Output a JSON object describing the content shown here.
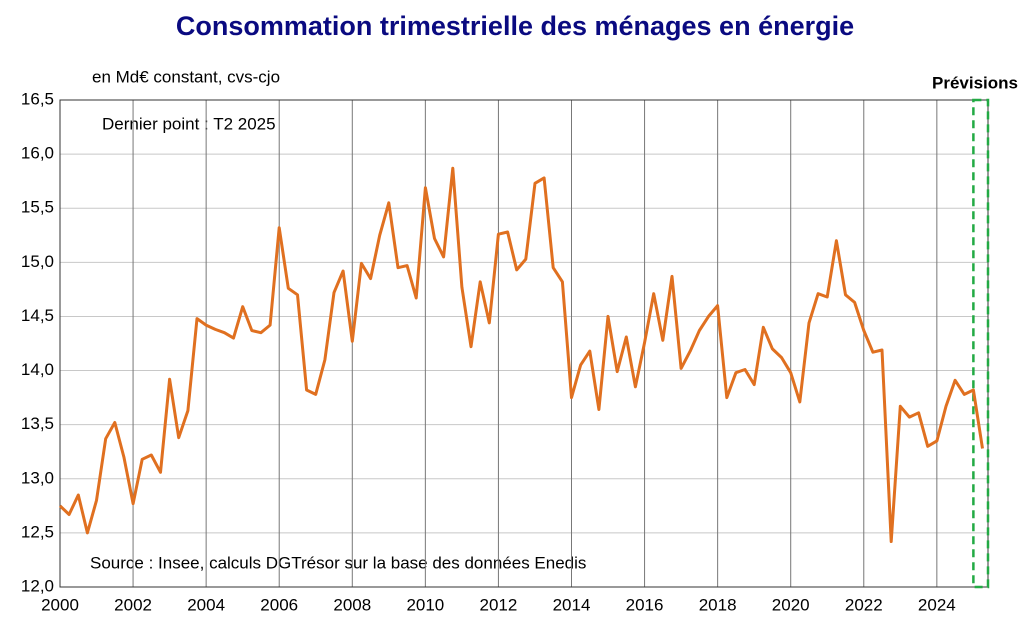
{
  "chart_data": {
    "type": "line",
    "title": "Consommation trimestrielle des ménages en énergie",
    "subtitle": "en Md€ constant, cvs-cjo",
    "annotation": "Dernier point : T2 2025",
    "source": "Source : Insee, calculs DGTrésor sur la base des données Enedis",
    "forecast_label": "Prévisions",
    "forecast_x": [
      2025,
      2025.4
    ],
    "forecast_color": "#22aa44",
    "x": [
      2000,
      2000.25,
      2000.5,
      2000.75,
      2001,
      2001.25,
      2001.5,
      2001.75,
      2002,
      2002.25,
      2002.5,
      2002.75,
      2003,
      2003.25,
      2003.5,
      2003.75,
      2004,
      2004.25,
      2004.5,
      2004.75,
      2005,
      2005.25,
      2005.5,
      2005.75,
      2006,
      2006.25,
      2006.5,
      2006.75,
      2007,
      2007.25,
      2007.5,
      2007.75,
      2008,
      2008.25,
      2008.5,
      2008.75,
      2009,
      2009.25,
      2009.5,
      2009.75,
      2010,
      2010.25,
      2010.5,
      2010.75,
      2011,
      2011.25,
      2011.5,
      2011.75,
      2012,
      2012.25,
      2012.5,
      2012.75,
      2013,
      2013.25,
      2013.5,
      2013.75,
      2014,
      2014.25,
      2014.5,
      2014.75,
      2015,
      2015.25,
      2015.5,
      2015.75,
      2016,
      2016.25,
      2016.5,
      2016.75,
      2017,
      2017.25,
      2017.5,
      2017.75,
      2018,
      2018.25,
      2018.5,
      2018.75,
      2019,
      2019.25,
      2019.5,
      2019.75,
      2020,
      2020.25,
      2020.5,
      2020.75,
      2021,
      2021.25,
      2021.5,
      2021.75,
      2022,
      2022.25,
      2022.5,
      2022.75,
      2023,
      2023.25,
      2023.5,
      2023.75,
      2024,
      2024.25,
      2024.5,
      2024.75,
      2025,
      2025.25
    ],
    "series": [
      {
        "name": "Consommation",
        "color": "#e07020",
        "values": [
          12.75,
          12.67,
          12.85,
          12.5,
          12.8,
          13.37,
          13.52,
          13.2,
          12.77,
          13.18,
          13.22,
          13.06,
          13.92,
          13.38,
          13.63,
          14.48,
          14.42,
          14.38,
          14.35,
          14.3,
          14.59,
          14.37,
          14.35,
          14.42,
          15.32,
          14.76,
          14.7,
          13.82,
          13.78,
          14.1,
          14.72,
          14.92,
          14.27,
          14.99,
          14.85,
          15.25,
          15.55,
          14.95,
          14.97,
          14.67,
          15.69,
          15.22,
          15.05,
          15.87,
          14.77,
          14.22,
          14.82,
          14.44,
          15.26,
          15.28,
          14.93,
          15.03,
          15.73,
          15.78,
          14.95,
          14.82,
          13.75,
          14.05,
          14.18,
          13.64,
          14.5,
          13.99,
          14.31,
          13.85,
          14.26,
          14.71,
          14.28,
          14.87,
          14.02,
          14.18,
          14.37,
          14.5,
          14.6,
          13.75,
          13.98,
          14.01,
          13.87,
          14.4,
          14.2,
          14.12,
          13.98,
          13.71,
          14.44,
          14.71,
          14.68,
          15.2,
          14.7,
          14.63,
          14.37,
          14.17,
          14.19,
          12.42,
          13.67,
          13.57,
          13.61,
          13.3,
          13.35,
          13.67,
          13.91,
          13.78,
          13.82,
          13.28
        ]
      }
    ],
    "xlim": [
      2000,
      2025.4
    ],
    "xticks": [
      2000,
      2002,
      2004,
      2006,
      2008,
      2010,
      2012,
      2014,
      2016,
      2018,
      2020,
      2022,
      2024
    ],
    "ylim": [
      12,
      16.5
    ],
    "yticks": [
      {
        "value": 12,
        "label": "12,0"
      },
      {
        "value": 12.5,
        "label": "12,5"
      },
      {
        "value": 13,
        "label": "13,0"
      },
      {
        "value": 13.5,
        "label": "13,5"
      },
      {
        "value": 14,
        "label": "14,0"
      },
      {
        "value": 14.5,
        "label": "14,5"
      },
      {
        "value": 15,
        "label": "15,0"
      },
      {
        "value": 15.5,
        "label": "15,5"
      },
      {
        "value": 16,
        "label": "16,0"
      },
      {
        "value": 16.5,
        "label": "16,5"
      }
    ],
    "grid": true
  }
}
